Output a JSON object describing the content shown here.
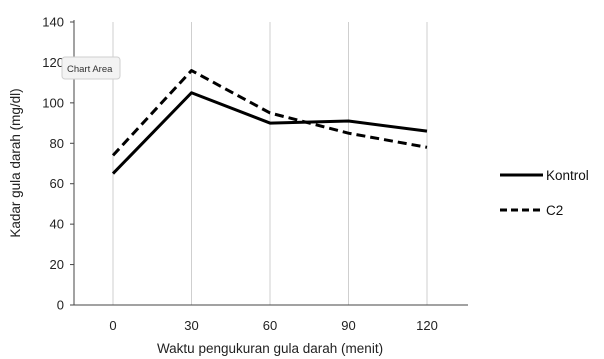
{
  "chart_data": {
    "type": "line",
    "title": "",
    "xlabel": "Waktu pengukuran gula darah (menit)",
    "ylabel": "Kadar gula darah (mg/dl)",
    "x": [
      0,
      30,
      60,
      90,
      120
    ],
    "x_tick_labels": [
      "0",
      "30",
      "60",
      "90",
      "120"
    ],
    "ylim": [
      0,
      140
    ],
    "y_ticks": [
      0,
      20,
      40,
      60,
      80,
      100,
      120,
      140
    ],
    "grid": "vertical",
    "legend_position": "right",
    "series": [
      {
        "name": "Kontrol",
        "style": "solid",
        "color": "#000000",
        "values": [
          65,
          105,
          90,
          91,
          86
        ]
      },
      {
        "name": "C2",
        "style": "dashed",
        "color": "#000000",
        "values": [
          74,
          116,
          95,
          85,
          78
        ]
      }
    ]
  },
  "tooltip": {
    "label": "Chart Area"
  }
}
